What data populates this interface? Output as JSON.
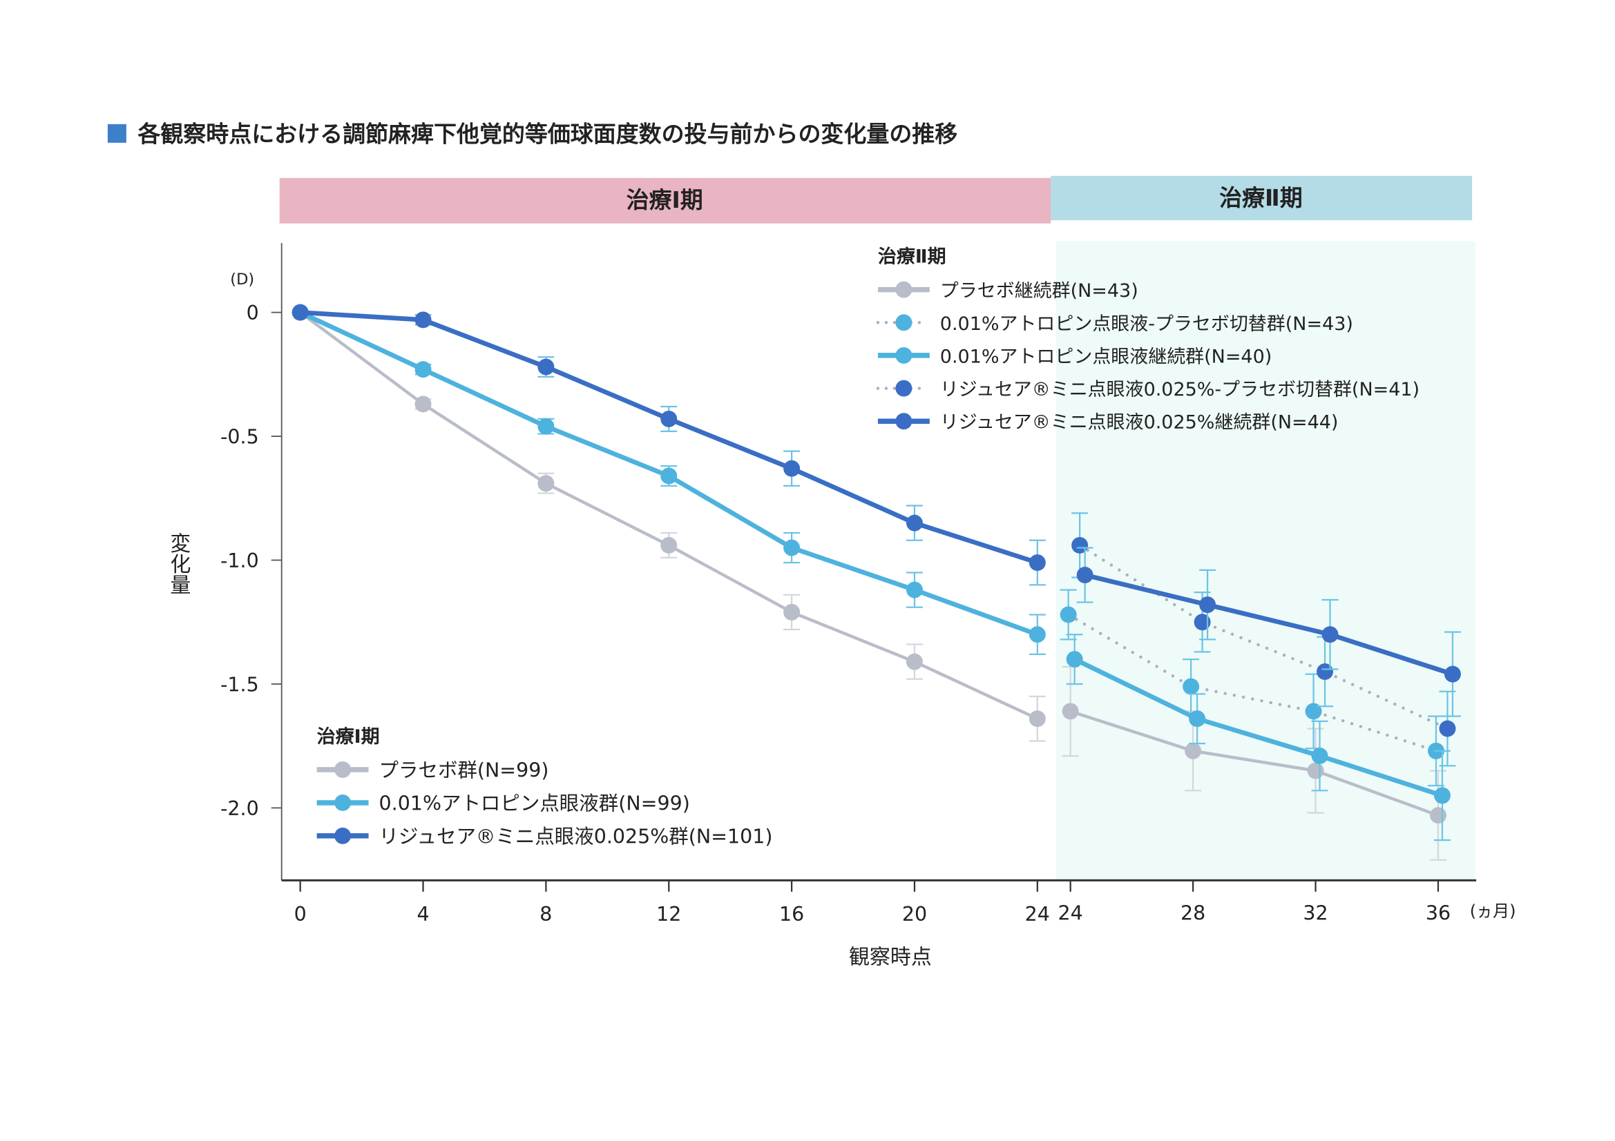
{
  "title": "各観察時点における調節麻痺下他覚的等価球面度数の投与前からの変化量の推移",
  "colors": {
    "title_square": "#3d7fc9",
    "phase1_band": "#e9b5c2",
    "phase2_band": "#b4dce6",
    "phase2_bg": "#eefbf8",
    "placebo": "#b9bdc9",
    "atropine": "#4eb2de",
    "lijusea": "#3a6ec4"
  },
  "chart_data": {
    "type": "line",
    "title": "各観察時点における調節麻痺下他覚的等価球面度数の投与前からの変化量の推移",
    "phase_labels": [
      "治療Ⅰ期",
      "治療Ⅱ期"
    ],
    "ylabel": "変化量",
    "yunit": "(D)",
    "xlabel": "観察時点",
    "xunit": "(ヵ月)",
    "ylim": [
      -2.3,
      0.1
    ],
    "yticks": [
      0,
      -0.5,
      -1.0,
      -1.5,
      -2.0
    ],
    "ytick_labels": [
      "0",
      "-0.5",
      "-1.0",
      "-1.5",
      "-2.0"
    ],
    "phase1_x": [
      0,
      4,
      8,
      12,
      16,
      20,
      24
    ],
    "phase1_xtick_labels": [
      "0",
      "4",
      "8",
      "12",
      "16",
      "20",
      "24"
    ],
    "phase2_x": [
      24,
      28,
      32,
      36
    ],
    "phase2_xtick_labels": [
      "24",
      "28",
      "32",
      "36"
    ],
    "grid": false,
    "legends": {
      "phase1": {
        "title": "治療Ⅰ期",
        "placement": "bottom-left"
      },
      "phase2": {
        "title": "治療Ⅱ期",
        "placement": "top-right"
      }
    },
    "phase1_series": [
      {
        "name": "プラセボ群(N=99)",
        "color": "placebo",
        "style": "solid",
        "values": [
          0,
          -0.37,
          -0.69,
          -0.94,
          -1.21,
          -1.41,
          -1.64
        ],
        "error": [
          0,
          0.02,
          0.04,
          0.05,
          0.07,
          0.07,
          0.09
        ]
      },
      {
        "name": "0.01%アトロピン点眼液群(N=99)",
        "color": "atropine",
        "style": "solid",
        "values": [
          0,
          -0.23,
          -0.46,
          -0.66,
          -0.95,
          -1.12,
          -1.3
        ],
        "error": [
          0,
          0.02,
          0.03,
          0.04,
          0.06,
          0.07,
          0.08
        ]
      },
      {
        "name": "リジュセア®ミニ点眼液0.025%群(N=101)",
        "color": "lijusea",
        "style": "solid",
        "values": [
          0,
          -0.03,
          -0.22,
          -0.43,
          -0.63,
          -0.85,
          -1.01
        ],
        "error": [
          0,
          0.02,
          0.04,
          0.05,
          0.07,
          0.07,
          0.09
        ]
      }
    ],
    "phase2_series": [
      {
        "name": "プラセボ継続群(N=43)",
        "color": "placebo",
        "style": "solid",
        "values": [
          -1.61,
          -1.77,
          -1.85,
          -2.03
        ],
        "error": [
          0.18,
          0.16,
          0.17,
          0.18
        ]
      },
      {
        "name": "0.01%アトロピン点眼液-プラセボ切替群(N=43)",
        "color": "atropine",
        "style": "dotted",
        "values": [
          -1.22,
          -1.51,
          -1.61,
          -1.77
        ],
        "error": [
          0.1,
          0.11,
          0.15,
          0.14
        ]
      },
      {
        "name": "0.01%アトロピン点眼液継続群(N=40)",
        "color": "atropine",
        "style": "solid",
        "values": [
          -1.4,
          -1.64,
          -1.79,
          -1.95
        ],
        "error": [
          0.1,
          0.1,
          0.14,
          0.18
        ]
      },
      {
        "name": "リジュセア®ミニ点眼液0.025%-プラセボ切替群(N=41)",
        "color": "lijusea",
        "style": "dotted",
        "values": [
          -0.94,
          -1.25,
          -1.45,
          -1.68
        ],
        "error": [
          0.13,
          0.12,
          0.14,
          0.15
        ]
      },
      {
        "name": "リジュセア®ミニ点眼液0.025%継続群(N=44)",
        "color": "lijusea",
        "style": "solid",
        "values": [
          -1.06,
          -1.18,
          -1.3,
          -1.46
        ],
        "error": [
          0.11,
          0.14,
          0.14,
          0.17
        ]
      }
    ]
  }
}
